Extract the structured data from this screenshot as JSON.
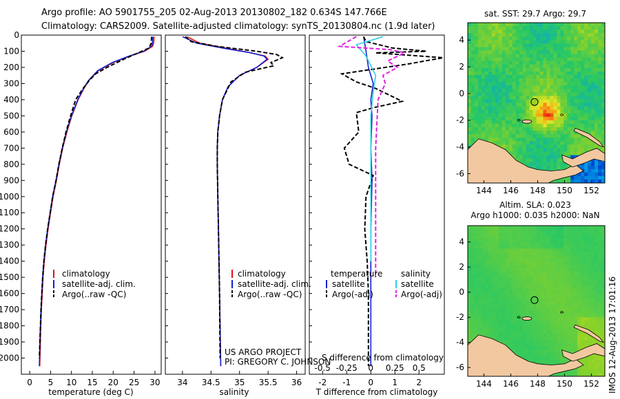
{
  "figure": {
    "title_line1": "Argo profile: AO 5901755_205 02-Aug-2013 20130802_182 0.634S 147.766E",
    "title_line2": "Climatology: CARS2009. Satellite-adjusted climatology: synTS_20130804.nc (1.9d later)",
    "project_line1": "US ARGO PROJECT",
    "project_line2": "PI: GREGORY C. JOHNSON",
    "side_stamp": "IMOS 12-Aug-2013 17:01:16",
    "colors": {
      "climatology": "#e01010",
      "satellite": "#1020d0",
      "argo": "#000000",
      "sal_satellite": "#30d0e0",
      "sal_argo": "#e020e0",
      "land": "#f2c8a0",
      "frame": "#000000"
    }
  },
  "chart_data": [
    {
      "id": "temperature-profile",
      "type": "line",
      "xlabel": "temperature (deg C)",
      "ylabel": "",
      "xlim": [
        -2,
        31.5
      ],
      "ylim": [
        2100,
        0
      ],
      "xticks": [
        "0",
        "5",
        "10",
        "15",
        "20",
        "25",
        "30"
      ],
      "yticks": [
        "0",
        "100",
        "200",
        "300",
        "400",
        "500",
        "600",
        "700",
        "800",
        "900",
        "1000",
        "1100",
        "1200",
        "1300",
        "1400",
        "1500",
        "1600",
        "1700",
        "1800",
        "1900",
        "2000"
      ],
      "legend": [
        "climatology",
        "satellite-adj. clim.",
        "Argo(..raw -QC)"
      ],
      "legend_position": "lower-center",
      "series": [
        {
          "name": "climatology",
          "style": "solid",
          "x": [
            29.8,
            29.7,
            29.4,
            27.5,
            24,
            20,
            16.5,
            14.2,
            13,
            11.6,
            10.1,
            8.9,
            7.9,
            7.1,
            6.4,
            5.6,
            5,
            4.4,
            3.9,
            3.5,
            3.2,
            3,
            2.8,
            2.6,
            2.4
          ],
          "y": [
            10,
            50,
            70,
            100,
            130,
            170,
            220,
            280,
            330,
            400,
            500,
            600,
            700,
            800,
            900,
            1000,
            1100,
            1200,
            1300,
            1400,
            1500,
            1600,
            1700,
            1850,
            2050
          ]
        },
        {
          "name": "satellite-adj. clim.",
          "style": "solid",
          "x": [
            29.5,
            29.4,
            29.2,
            27.3,
            23.8,
            19.8,
            16.3,
            14.1,
            12.9,
            11.5,
            10,
            8.8,
            7.8,
            7,
            6.3,
            5.5,
            4.9,
            4.3,
            3.8,
            3.4,
            3.1,
            2.9,
            2.7,
            2.5,
            2.3
          ],
          "y": [
            10,
            50,
            70,
            100,
            130,
            170,
            220,
            280,
            330,
            400,
            500,
            600,
            700,
            800,
            900,
            1000,
            1100,
            1200,
            1300,
            1400,
            1500,
            1600,
            1700,
            1850,
            2050
          ]
        },
        {
          "name": "Argo(..raw -QC)",
          "style": "dashed",
          "x": [
            29.2,
            29.1,
            28.6,
            26,
            22.5,
            18.5,
            15.8,
            14.3,
            12.8,
            11,
            9.8,
            8.7,
            7.8,
            7,
            6.3,
            5.5,
            4.9,
            4.3,
            3.8,
            3.4,
            3.1,
            2.9,
            2.7,
            2.5,
            2.3
          ],
          "y": [
            10,
            50,
            80,
            110,
            150,
            200,
            240,
            280,
            330,
            400,
            500,
            600,
            700,
            800,
            900,
            1000,
            1100,
            1200,
            1300,
            1400,
            1500,
            1600,
            1700,
            1850,
            2000
          ]
        }
      ]
    },
    {
      "id": "salinity-profile",
      "type": "line",
      "xlabel": "salinity",
      "ylabel": "",
      "xlim": [
        33.7,
        36.15
      ],
      "ylim": [
        2100,
        0
      ],
      "xticks": [
        "34",
        "34.5",
        "35",
        "35.5",
        "36"
      ],
      "legend": [
        "climatology",
        "satellite-adj. clim.",
        "Argo(..raw -QC)"
      ],
      "legend_position": "lower-right",
      "series": [
        {
          "name": "climatology",
          "style": "solid",
          "x": [
            34.08,
            34.3,
            34.75,
            35.2,
            35.45,
            35.5,
            35.3,
            35.0,
            34.8,
            34.7,
            34.65,
            34.62,
            34.61,
            34.61,
            34.62,
            34.63,
            34.64,
            34.65,
            34.66,
            34.67
          ],
          "y": [
            10,
            50,
            80,
            110,
            130,
            150,
            200,
            250,
            320,
            400,
            500,
            600,
            700,
            800,
            1000,
            1200,
            1400,
            1600,
            1800,
            2050
          ]
        },
        {
          "name": "satellite-adj. clim.",
          "style": "solid",
          "x": [
            34.0,
            34.25,
            34.7,
            35.2,
            35.43,
            35.48,
            35.3,
            35.0,
            34.8,
            34.7,
            34.65,
            34.62,
            34.61,
            34.61,
            34.62,
            34.63,
            34.64,
            34.65,
            34.66,
            34.67
          ],
          "y": [
            10,
            50,
            80,
            110,
            130,
            150,
            200,
            250,
            320,
            400,
            500,
            600,
            700,
            800,
            1000,
            1200,
            1400,
            1600,
            1800,
            2050
          ]
        },
        {
          "name": "Argo(..raw -QC)",
          "style": "dashed",
          "x": [
            34.05,
            34.15,
            34.6,
            35.3,
            35.65,
            35.75,
            35.55,
            35.6,
            35.1,
            34.85,
            34.7,
            34.65,
            34.62,
            34.61,
            34.61,
            34.62,
            34.63,
            34.64,
            34.65,
            34.66
          ],
          "y": [
            10,
            40,
            70,
            100,
            120,
            140,
            170,
            190,
            230,
            290,
            400,
            500,
            600,
            700,
            800,
            1000,
            1200,
            1400,
            1600,
            2000
          ]
        }
      ]
    },
    {
      "id": "difference-profile",
      "type": "line",
      "xlabel": "T difference from climatology",
      "xlabel_secondary": "S difference from climatology",
      "xlim": [
        -2.55,
        3.05
      ],
      "ylim": [
        2100,
        0
      ],
      "xticks": [
        "-2",
        "-1",
        "0",
        "1",
        "2"
      ],
      "xticks_secondary": [
        "-0.5",
        "-0.25",
        "0",
        "0.25",
        "0.5"
      ],
      "legend_temperature_title": "temperature",
      "legend_salinity_title": "salinity",
      "legend": [
        "satellite",
        "Argo(-adj)",
        "satellite",
        "Argo(-adj)"
      ],
      "legend_position": "lower-center",
      "series": [
        {
          "name": "satellite",
          "group": "temperature",
          "style": "solid",
          "x": [
            -0.3,
            -0.2,
            -0.1,
            0.1,
            0.0,
            0.05,
            0.0,
            0.05,
            0.0,
            0.0,
            0.0
          ],
          "y": [
            10,
            100,
            200,
            300,
            400,
            500,
            700,
            900,
            1200,
            1600,
            2050
          ]
        },
        {
          "name": "Argo(-adj)",
          "group": "temperature",
          "style": "dashed",
          "x": [
            -0.3,
            -0.2,
            0.9,
            2.3,
            0.2,
            3.0,
            1.5,
            -1.2,
            -0.6,
            0.2,
            1.3,
            0.1,
            -0.6,
            -0.5,
            -1.1,
            -0.9,
            0.1,
            -0.2,
            -0.25,
            -0.15,
            -0.1,
            -0.1,
            -0.1,
            -0.1
          ],
          "y": [
            10,
            40,
            80,
            100,
            110,
            140,
            180,
            240,
            290,
            330,
            410,
            450,
            480,
            600,
            700,
            800,
            870,
            1000,
            1200,
            1400,
            1600,
            1800,
            1950,
            2050
          ]
        },
        {
          "name": "satellite",
          "group": "salinity",
          "style": "solid",
          "x": [
            0.5,
            -0.6,
            -0.2,
            0.2,
            0.1,
            0.0,
            0.0,
            0.0,
            0.0
          ],
          "y": [
            10,
            60,
            130,
            250,
            350,
            500,
            700,
            1000,
            1400
          ]
        },
        {
          "name": "Argo(-adj)",
          "group": "salinity",
          "style": "dashed",
          "x": [
            -0.6,
            -1.3,
            0.8,
            1.4,
            0.7,
            1.1,
            0.5,
            0.6,
            0.3,
            0.2,
            0.2,
            0.2,
            0.2
          ],
          "y": [
            10,
            70,
            90,
            110,
            160,
            200,
            250,
            300,
            400,
            700,
            1000,
            1200,
            1500
          ]
        }
      ]
    },
    {
      "id": "sst-map",
      "type": "heatmap",
      "title": "sat. SST: 29.7 Argo: 29.7",
      "xlim": [
        142.8,
        153.0
      ],
      "ylim": [
        -6.7,
        5.3
      ],
      "xticks": [
        "144",
        "146",
        "148",
        "150",
        "152"
      ],
      "yticks": [
        "4",
        "2",
        "0",
        "-2",
        "-4",
        "-6"
      ],
      "profile_marker": {
        "lon": 147.766,
        "lat": -0.634
      }
    },
    {
      "id": "sla-map",
      "type": "heatmap",
      "title_line1": "Altim. SLA: 0.023",
      "title_line2": "Argo h1000: 0.035 h2000: NaN",
      "xlim": [
        142.8,
        153.0
      ],
      "ylim": [
        -6.7,
        5.3
      ],
      "xticks": [
        "144",
        "146",
        "148",
        "150",
        "152"
      ],
      "yticks": [
        "4",
        "2",
        "0",
        "-2",
        "-4",
        "-6"
      ],
      "profile_marker": {
        "lon": 147.766,
        "lat": -0.634
      }
    }
  ]
}
